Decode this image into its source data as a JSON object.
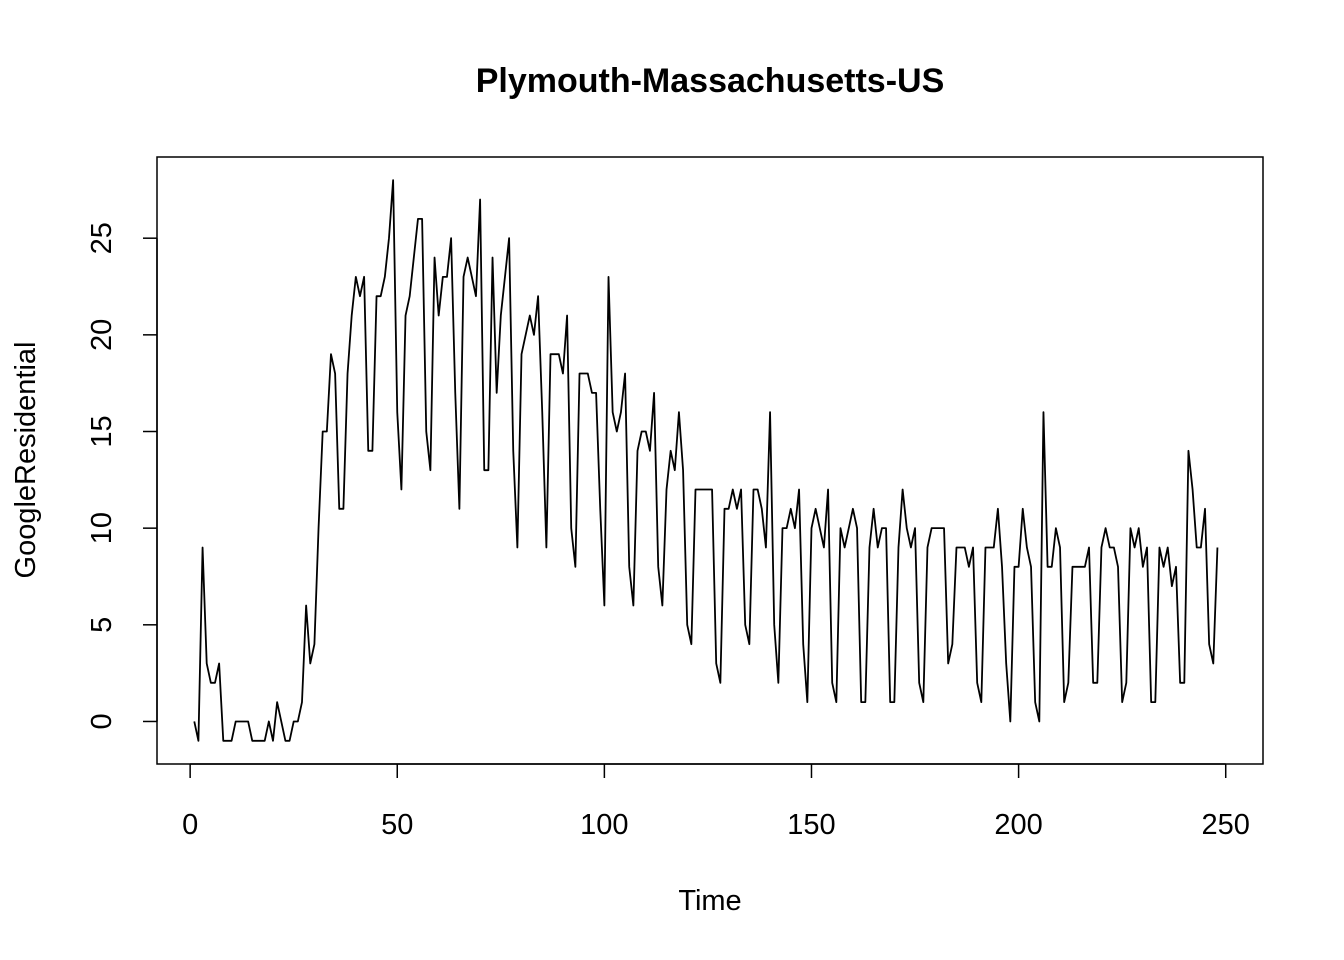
{
  "chart_data": {
    "type": "line",
    "title": "Plymouth-Massachusetts-US",
    "xlabel": "Time",
    "ylabel": "GoogleResidential",
    "xlim": [
      -8,
      259
    ],
    "ylim": [
      -2.2,
      29.2
    ],
    "x_ticks": [
      0,
      50,
      100,
      150,
      200,
      250
    ],
    "y_ticks": [
      0,
      5,
      10,
      15,
      20,
      25
    ],
    "x_start": 1,
    "grid": false,
    "line_color": "#000000",
    "values": [
      0,
      -1,
      9,
      3,
      2,
      2,
      3,
      -1,
      -1,
      -1,
      0,
      0,
      0,
      0,
      -1,
      -1,
      -1,
      -1,
      0,
      -1,
      1,
      0,
      -1,
      -1,
      0,
      0,
      1,
      6,
      3,
      4,
      10,
      15,
      15,
      19,
      18,
      11,
      11,
      18,
      21,
      23,
      22,
      23,
      14,
      14,
      22,
      22,
      23,
      25,
      28,
      16,
      12,
      21,
      22,
      24,
      26,
      26,
      15,
      13,
      24,
      21,
      23,
      23,
      25,
      17,
      11,
      23,
      24,
      23,
      22,
      27,
      13,
      13,
      24,
      17,
      21,
      23,
      25,
      14,
      9,
      19,
      20,
      21,
      20,
      22,
      16,
      9,
      19,
      19,
      19,
      18,
      21,
      10,
      8,
      18,
      18,
      18,
      17,
      17,
      11,
      6,
      23,
      16,
      15,
      16,
      18,
      8,
      6,
      14,
      15,
      15,
      14,
      17,
      8,
      6,
      12,
      14,
      13,
      16,
      13,
      5,
      4,
      12,
      12,
      12,
      12,
      12,
      3,
      2,
      11,
      11,
      12,
      11,
      12,
      5,
      4,
      12,
      12,
      11,
      9,
      16,
      5,
      2,
      10,
      10,
      11,
      10,
      12,
      4,
      1,
      10,
      11,
      10,
      9,
      12,
      2,
      1,
      10,
      9,
      10,
      11,
      10,
      1,
      1,
      9,
      11,
      9,
      10,
      10,
      1,
      1,
      9,
      12,
      10,
      9,
      10,
      2,
      1,
      9,
      10,
      10,
      10,
      10,
      3,
      4,
      9,
      9,
      9,
      8,
      9,
      2,
      1,
      9,
      9,
      9,
      11,
      8,
      3,
      0,
      8,
      8,
      11,
      9,
      8,
      1,
      0,
      16,
      8,
      8,
      10,
      9,
      1,
      2,
      8,
      8,
      8,
      8,
      9,
      2,
      2,
      9,
      10,
      9,
      9,
      8,
      1,
      2,
      10,
      9,
      10,
      8,
      9,
      1,
      1,
      9,
      8,
      9,
      7,
      8,
      2,
      2,
      14,
      12,
      9,
      9,
      11,
      4,
      3,
      9
    ]
  }
}
